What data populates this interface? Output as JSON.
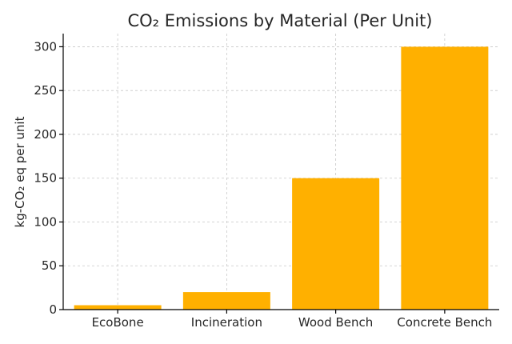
{
  "chart_data": {
    "type": "bar",
    "title": "CO₂ Emissions by Material (Per Unit)",
    "xlabel": "",
    "ylabel": "kg-CO₂ eq per unit",
    "categories": [
      "EcoBone",
      "Incineration",
      "Wood Bench",
      "Concrete Bench"
    ],
    "values": [
      5,
      20,
      150,
      300
    ],
    "ylim": [
      0,
      315
    ],
    "yticks": [
      0,
      50,
      100,
      150,
      200,
      250,
      300
    ],
    "grid": true,
    "legend": "none",
    "bar_color": "#FFB000"
  }
}
